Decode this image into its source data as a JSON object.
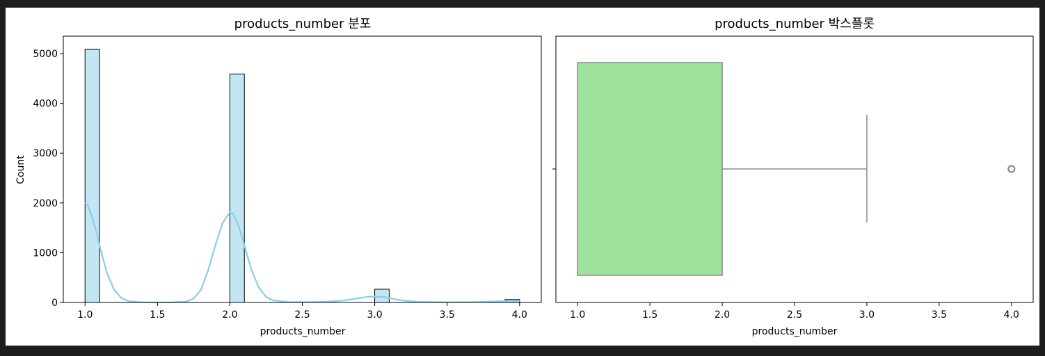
{
  "colors": {
    "hist_fill": "#c3e6f3",
    "hist_edge": "#000000",
    "kde_line": "#87ceeb",
    "box_fill": "#9de39b",
    "box_line": "#8c8c8c"
  },
  "chart_data": [
    {
      "type": "bar",
      "title": "products_number 분포",
      "xlabel": "products_number",
      "ylabel": "Count",
      "xlim": [
        0.85,
        4.15
      ],
      "ylim": [
        0,
        5350
      ],
      "x_ticks": [
        "1.0",
        "1.5",
        "2.0",
        "2.5",
        "3.0",
        "3.5",
        "4.0"
      ],
      "y_ticks": [
        "0",
        "1000",
        "2000",
        "3000",
        "4000",
        "5000"
      ],
      "bins": [
        {
          "x0": 1.0,
          "x1": 1.1,
          "count": 5084
        },
        {
          "x0": 2.0,
          "x1": 2.1,
          "count": 4590
        },
        {
          "x0": 3.0,
          "x1": 3.1,
          "count": 266
        },
        {
          "x0": 3.9,
          "x1": 4.0,
          "count": 60
        }
      ],
      "kde": {
        "x": [
          1.0,
          1.02,
          1.05,
          1.08,
          1.1,
          1.15,
          1.2,
          1.25,
          1.3,
          1.4,
          1.5,
          1.6,
          1.7,
          1.75,
          1.8,
          1.85,
          1.9,
          1.95,
          2.0,
          2.02,
          2.05,
          2.08,
          2.1,
          2.15,
          2.2,
          2.25,
          2.3,
          2.4,
          2.5,
          2.6,
          2.7,
          2.8,
          2.85,
          2.9,
          2.95,
          3.0,
          3.05,
          3.1,
          3.15,
          3.2,
          3.3,
          3.5,
          3.7,
          3.85,
          4.0
        ],
        "y": [
          2000,
          1950,
          1700,
          1400,
          1150,
          600,
          260,
          90,
          25,
          3,
          0,
          2,
          20,
          80,
          250,
          650,
          1150,
          1600,
          1810,
          1790,
          1620,
          1350,
          1150,
          650,
          300,
          110,
          40,
          10,
          8,
          10,
          20,
          45,
          65,
          90,
          112,
          118,
          112,
          90,
          60,
          35,
          12,
          4,
          10,
          22,
          30
        ]
      }
    },
    {
      "type": "box",
      "title": "products_number 박스플롯",
      "xlabel": "products_number",
      "xlim": [
        0.85,
        4.15
      ],
      "x_ticks": [
        "1.0",
        "1.5",
        "2.0",
        "2.5",
        "3.0",
        "3.5",
        "4.0"
      ],
      "q1": 1.0,
      "median": 1.0,
      "q3": 2.0,
      "whisker_low": 1.0,
      "whisker_high": 3.0,
      "outliers": [
        4.0
      ]
    }
  ]
}
